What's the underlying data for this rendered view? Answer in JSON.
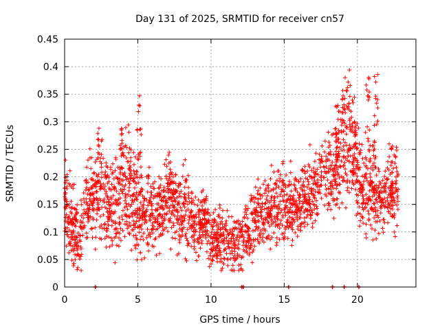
{
  "chart_data": {
    "type": "scatter",
    "title": "Day 131 of 2025, SRMTID for receiver cn57",
    "xlabel": "GPS time / hours",
    "ylabel": "SRMTID / TECUs",
    "xlim": [
      0,
      24
    ],
    "ylim": [
      0,
      0.45
    ],
    "xticks": [
      0,
      5,
      10,
      15,
      20
    ],
    "xtick_labels": [
      "0",
      "5",
      "10",
      "15",
      "20"
    ],
    "yticks": [
      0,
      0.05,
      0.1,
      0.15,
      0.2,
      0.25,
      0.3,
      0.35,
      0.4,
      0.45
    ],
    "ytick_labels": [
      "0",
      "0.05",
      "0.1",
      "0.15",
      "0.2",
      "0.25",
      "0.3",
      "0.35",
      "0.4",
      "0.45"
    ],
    "grid": true,
    "marker": "plus",
    "color": "#ff0000",
    "series": [
      {
        "name": "SRMTID",
        "trend": {
          "x": [
            0,
            0.5,
            1,
            1.5,
            2,
            2.5,
            3,
            3.5,
            4,
            4.5,
            5,
            5.5,
            6,
            6.5,
            7,
            7.5,
            8,
            8.5,
            9,
            9.5,
            10,
            10.5,
            11,
            11.5,
            12,
            12.5,
            13,
            13.5,
            14,
            14.5,
            15,
            15.5,
            16,
            16.5,
            17,
            17.5,
            18,
            18.5,
            19,
            19.5,
            20,
            20.5,
            21,
            21.5,
            22,
            22.5
          ],
          "y": [
            0.16,
            0.11,
            0.09,
            0.15,
            0.16,
            0.17,
            0.15,
            0.14,
            0.18,
            0.16,
            0.15,
            0.14,
            0.13,
            0.14,
            0.16,
            0.14,
            0.13,
            0.12,
            0.11,
            0.12,
            0.09,
            0.09,
            0.08,
            0.08,
            0.08,
            0.1,
            0.12,
            0.14,
            0.14,
            0.15,
            0.15,
            0.14,
            0.15,
            0.16,
            0.18,
            0.2,
            0.21,
            0.22,
            0.26,
            0.27,
            0.2,
            0.17,
            0.18,
            0.16,
            0.17,
            0.18
          ]
        },
        "spread": {
          "x": [
            0,
            2,
            4,
            6,
            8,
            10,
            12,
            14,
            16,
            18,
            19,
            20,
            21,
            22
          ],
          "y": [
            0.05,
            0.06,
            0.07,
            0.05,
            0.05,
            0.04,
            0.04,
            0.05,
            0.05,
            0.05,
            0.08,
            0.07,
            0.06,
            0.05
          ]
        },
        "bursts": [
          {
            "x": 2.3,
            "ymin": 0.16,
            "ymax": 0.29
          },
          {
            "x": 3.9,
            "ymin": 0.17,
            "ymax": 0.29
          },
          {
            "x": 4.4,
            "ymin": 0.18,
            "ymax": 0.3
          },
          {
            "x": 5.1,
            "ymin": 0.18,
            "ymax": 0.35
          },
          {
            "x": 7.2,
            "ymin": 0.16,
            "ymax": 0.27
          },
          {
            "x": 8.2,
            "ymin": 0.14,
            "ymax": 0.24
          },
          {
            "x": 18.6,
            "ymin": 0.22,
            "ymax": 0.33
          },
          {
            "x": 19.1,
            "ymin": 0.28,
            "ymax": 0.41
          },
          {
            "x": 19.4,
            "ymin": 0.24,
            "ymax": 0.4
          },
          {
            "x": 19.8,
            "ymin": 0.2,
            "ymax": 0.36
          },
          {
            "x": 20.7,
            "ymin": 0.26,
            "ymax": 0.4
          },
          {
            "x": 21.3,
            "ymin": 0.26,
            "ymax": 0.39
          },
          {
            "x": 22.3,
            "ymin": 0.16,
            "ymax": 0.26
          }
        ],
        "num_points": 2400
      }
    ],
    "zero_markers": [
      2.1,
      12.1,
      12.2,
      15.3,
      18.3,
      19.1,
      20.1
    ]
  }
}
